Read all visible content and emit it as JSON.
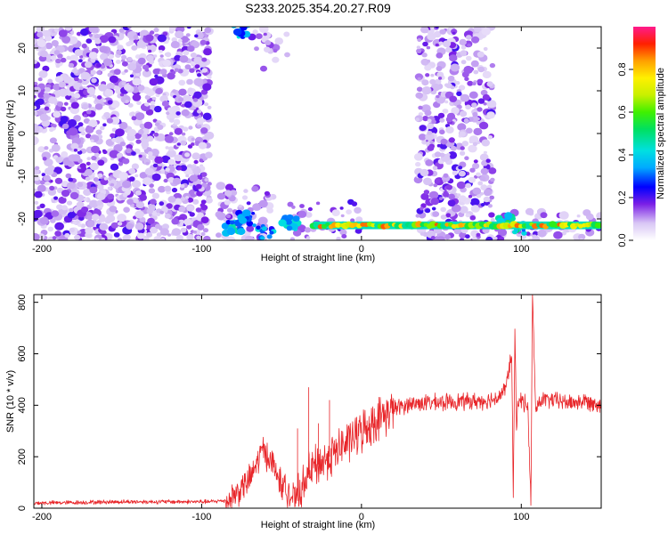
{
  "title": "S233.2025.354.20.27.R09",
  "colors": {
    "snr_line": "#e8262a",
    "axis": "#000000"
  },
  "chart_data": [
    {
      "type": "heatmap",
      "name": "spectrogram",
      "xlabel": "Height of straight line (km)",
      "ylabel": "Frequency (Hz)",
      "xlim": [
        -205,
        150
      ],
      "ylim": [
        -25,
        25
      ],
      "xticks": [
        -200,
        -100,
        0,
        100
      ],
      "yticks": [
        -20,
        -10,
        0,
        10,
        20
      ],
      "colorbar": {
        "label": "Normalized spectral amplitude",
        "range": [
          0.0,
          1.0
        ],
        "ticks": [
          0.0,
          0.2,
          0.4,
          0.6,
          0.8
        ]
      },
      "features": [
        {
          "kind": "noise",
          "x": [
            -205,
            -95
          ],
          "f": [
            -25,
            25
          ],
          "density": 0.9
        },
        {
          "kind": "noise",
          "x": [
            -90,
            -55
          ],
          "f": [
            -25,
            -12
          ],
          "density": 0.6
        },
        {
          "kind": "noise",
          "x": [
            -70,
            -45
          ],
          "f": [
            15,
            25
          ],
          "density": 0.3
        },
        {
          "kind": "noise",
          "x": [
            -45,
            0
          ],
          "f": [
            -25,
            -16
          ],
          "density": 0.4
        },
        {
          "kind": "noise",
          "x": [
            35,
            82
          ],
          "f": [
            -25,
            25
          ],
          "density": 0.7
        },
        {
          "kind": "noise",
          "x": [
            82,
            150
          ],
          "f": [
            -25,
            -18
          ],
          "density": 0.5
        },
        {
          "kind": "band",
          "x": [
            -30,
            150
          ],
          "f": -21.5,
          "amplitude": 0.85
        },
        {
          "kind": "blob",
          "x": -80,
          "f": -22,
          "amplitude": 0.45
        },
        {
          "kind": "blob",
          "x": -72,
          "f": -20,
          "amplitude": 0.35
        },
        {
          "kind": "blob",
          "x": -60,
          "f": -23,
          "amplitude": 0.4
        },
        {
          "kind": "blob",
          "x": -45,
          "f": -21,
          "amplitude": 0.45
        },
        {
          "kind": "blob",
          "x": -75,
          "f": 24,
          "amplitude": 0.4
        },
        {
          "kind": "blob",
          "x": 90,
          "f": -20.5,
          "amplitude": 0.6
        },
        {
          "kind": "blob",
          "x": 100,
          "f": -22,
          "amplitude": 0.5
        }
      ]
    },
    {
      "type": "line",
      "name": "snr",
      "xlabel": "Height of straight line (km)",
      "ylabel": "SNR (10 * v/v)",
      "xlim": [
        -205,
        150
      ],
      "ylim": [
        0,
        830
      ],
      "xticks": [
        -200,
        -100,
        0,
        100
      ],
      "yticks": [
        0,
        200,
        400,
        600,
        800
      ],
      "x": [
        -205,
        -180,
        -150,
        -120,
        -95,
        -85,
        -78,
        -70,
        -65,
        -62,
        -58,
        -54,
        -50,
        -45,
        -40,
        -36,
        -30,
        -24,
        -18,
        -12,
        -6,
        0,
        10,
        20,
        30,
        40,
        50,
        60,
        70,
        80,
        85,
        90,
        94,
        95,
        96,
        97,
        98,
        100,
        104,
        106,
        107,
        108,
        109,
        112,
        120,
        130,
        140,
        150
      ],
      "y": [
        20,
        22,
        25,
        25,
        25,
        30,
        60,
        110,
        180,
        230,
        200,
        150,
        90,
        50,
        40,
        100,
        160,
        180,
        210,
        240,
        270,
        300,
        345,
        385,
        405,
        410,
        410,
        415,
        415,
        420,
        430,
        460,
        600,
        40,
        690,
        300,
        420,
        420,
        400,
        30,
        820,
        600,
        380,
        420,
        420,
        410,
        415,
        405
      ],
      "noise_envelope": [
        {
          "x": [
            -205,
            -85
          ],
          "amp": 10
        },
        {
          "x": [
            -85,
            -40
          ],
          "amp": 70
        },
        {
          "x": [
            -40,
            20
          ],
          "amp": 100
        },
        {
          "x": [
            20,
            150
          ],
          "amp": 40
        }
      ],
      "spikes": [
        {
          "x": -40,
          "y": 310
        },
        {
          "x": -33,
          "y": 470
        },
        {
          "x": -27,
          "y": 330
        },
        {
          "x": -20,
          "y": 420
        }
      ]
    }
  ]
}
